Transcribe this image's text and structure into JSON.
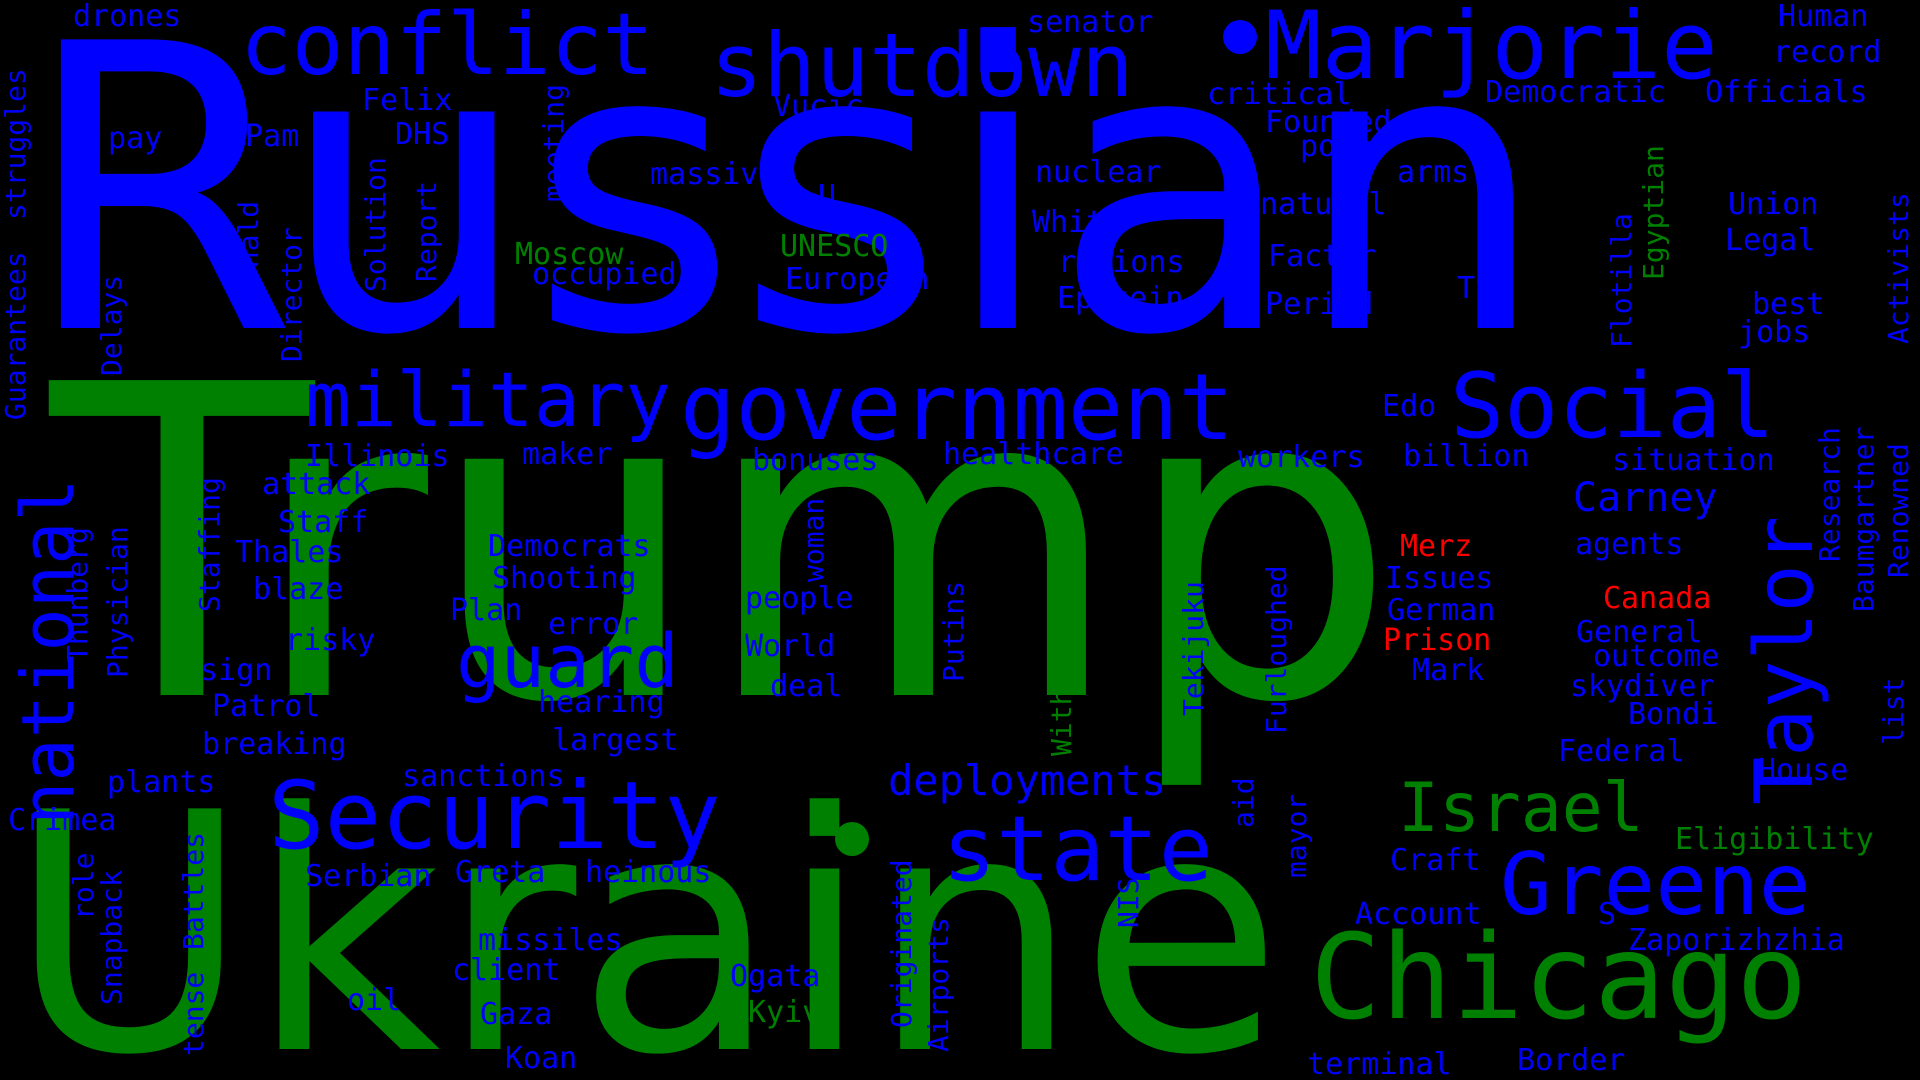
{
  "colors": {
    "background": "#000000",
    "blue": "#0000ff",
    "green": "#008000",
    "red": "#ff0000"
  },
  "words": {
    "russian": "Russian",
    "trump": "Trump",
    "ukraine": "Ukraine",
    "marjorie": "Marjorie",
    "conflict": "conflict",
    "shutdown": "shutdown",
    "government": "government",
    "military": "military",
    "social": "Social",
    "security": "Security",
    "state": "state",
    "guard": "guard",
    "national": "national",
    "taylor": "Taylor",
    "greene": "Greene",
    "chicago": "Chicago",
    "israel": "Israel",
    "deployments": "deployments",
    "drones": "drones",
    "senator": "senator",
    "human": "Human",
    "record": "record",
    "felix": "Felix",
    "vucic": "Vucic",
    "critical": "critical",
    "democratic": "Democratic",
    "officials": "Officials",
    "founded": "Founded",
    "pay": "pay",
    "pam": "Pam",
    "dhs": "DHS",
    "power": "power",
    "arms": "arms",
    "massive": "massive",
    "nuclear": "nuclear",
    "natural": "natural",
    "union": "Union",
    "u": "U",
    "white": "White",
    "moscow": "Moscow",
    "unesco": "UNESCO",
    "legal": "Legal",
    "factor": "Factor",
    "regions": "regions",
    "occupied": "occupied",
    "european": "European",
    "epstein": "Epstein",
    "tsx": "TSX",
    "period": "Period",
    "best": "best",
    "jobs": "jobs",
    "edo": "Edo",
    "illinois": "Illinois",
    "maker": "maker",
    "bonuses": "bonuses",
    "healthcare": "healthcare",
    "workers": "workers",
    "billion": "billion",
    "situation": "situation",
    "attack": "attack",
    "carney": "Carney",
    "staff": "Staff",
    "democrats": "Democrats",
    "merz": "Merz",
    "agents": "agents",
    "thales": "Thales",
    "shooting": "Shooting",
    "issues": "Issues",
    "canada": "Canada",
    "blaze": "blaze",
    "plan": "Plan",
    "people": "people",
    "german": "German",
    "error": "error",
    "prison": "Prison",
    "general": "General",
    "risky": "risky",
    "world": "World",
    "outcome": "outcome",
    "mark": "Mark",
    "sign": "sign",
    "deal": "deal",
    "skydiver": "skydiver",
    "hearing": "hearing",
    "patrol": "Patrol",
    "bondi": "Bondi",
    "largest": "largest",
    "breaking": "breaking",
    "federal": "Federal",
    "sanctions": "sanctions",
    "plants": "plants",
    "house": "House",
    "crimea": "Crimea",
    "eligibility": "Eligibility",
    "craft": "Craft",
    "serbian": "Serbian",
    "greta": "Greta",
    "heinous": "heinous",
    "account": "Account",
    "s": "S",
    "missiles": "missiles",
    "zaporizhzhia": "Zaporizhzhia",
    "client": "client",
    "ogata": "Ogata",
    "oil": "oil",
    "kyiv": "Kyiv",
    "gaza": "Gaza",
    "koan": "Koan",
    "terminal": "terminal",
    "border": "Border",
    "guarantees": "Guarantees",
    "struggles": "struggles",
    "delays": "Delays",
    "director": "Director",
    "donald": "Donald",
    "solution": "Solution",
    "report": "Report",
    "meeting": "meeting",
    "staffing": "Staffing",
    "thunberg": "Thunberg",
    "physician": "Physician",
    "woman": "woman",
    "putins": "Putins",
    "withdrawal": "Withdrawal",
    "tekijuku": "Tekijuku",
    "furloughed": "Furloughed",
    "flotilla": "Flotilla",
    "egyptian": "Egyptian",
    "activists": "Activists",
    "research": "Research",
    "baumgartner": "Baumgartner",
    "renowned": "Renowned",
    "list": "list",
    "role": "role",
    "snapback": "Snapback",
    "tense": "tense",
    "battles": "Battles",
    "originated": "Originated",
    "airports": "Airports",
    "nis": "NIS",
    "aid": "aid",
    "mayor": "mayor"
  }
}
